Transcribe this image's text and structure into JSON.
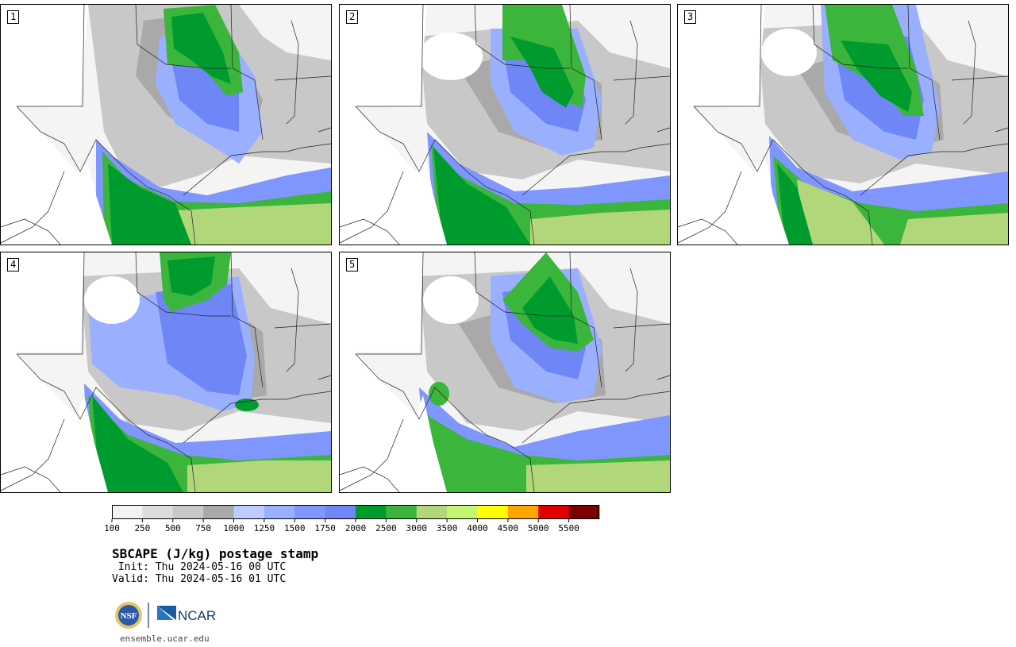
{
  "panels": [
    {
      "label": "1"
    },
    {
      "label": "2"
    },
    {
      "label": "3"
    },
    {
      "label": "4"
    },
    {
      "label": "5"
    }
  ],
  "colorbar": {
    "ticks": [
      "100",
      "250",
      "500",
      "750",
      "1000",
      "1250",
      "1500",
      "1750",
      "2000",
      "2500",
      "3000",
      "3500",
      "4000",
      "4500",
      "5000",
      "5500"
    ],
    "colors": [
      "#f2f2f2",
      "#dcdcdc",
      "#c8c8c8",
      "#a9a9a9",
      "#c0ccff",
      "#9ab0ff",
      "#8096ff",
      "#6f86f7",
      "#009b2e",
      "#3cb53c",
      "#b2d67a",
      "#c6f572",
      "#ffff00",
      "#ffa500",
      "#e00000",
      "#7a0000"
    ]
  },
  "title": "SBCAPE (J/kg) postage stamp",
  "init": " Init: Thu 2024-05-16 00 UTC",
  "valid": "Valid: Thu 2024-05-16 01 UTC",
  "logos": {
    "nsf": "NSF",
    "ncar": "NCAR"
  },
  "site": "ensemble.ucar.edu"
}
